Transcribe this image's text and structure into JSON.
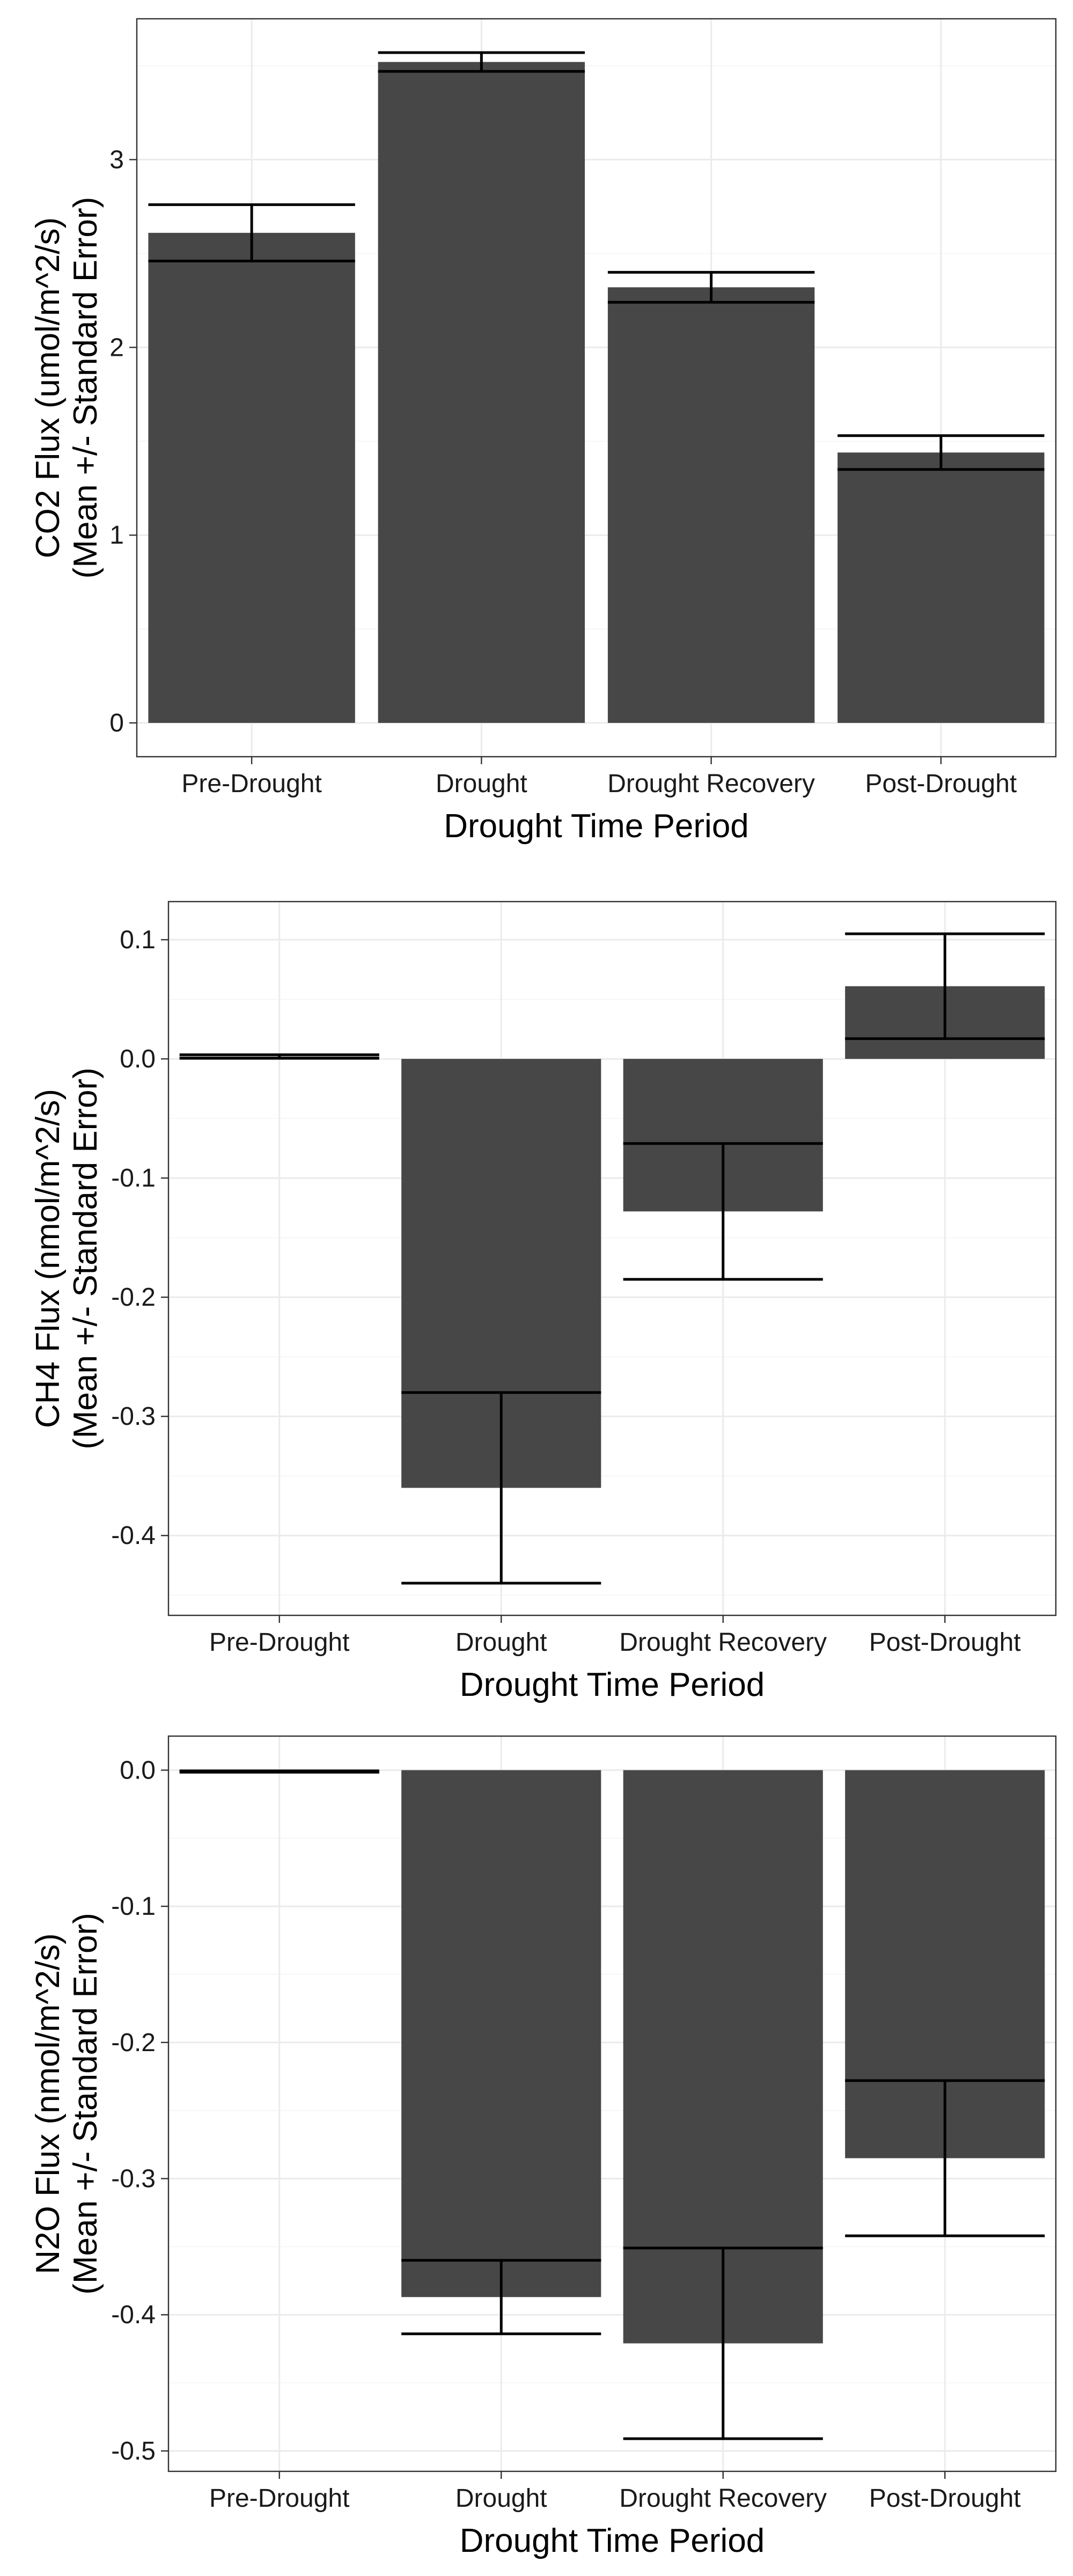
{
  "chart_data": [
    {
      "type": "bar",
      "title": "",
      "categories": [
        "Pre-Drought",
        "Drought",
        "Drought Recovery",
        "Post-Drought"
      ],
      "values": [
        2.61,
        3.52,
        2.32,
        1.44
      ],
      "errors": [
        0.15,
        0.05,
        0.08,
        0.09
      ],
      "xlabel": "Drought Time Period",
      "ylabel": [
        "CO2 Flux (umol/m^2/s)",
        "(Mean +/- Standard Error)"
      ],
      "ylim": [
        -0.18,
        3.75
      ],
      "yticks": [
        0,
        1,
        2,
        3
      ],
      "ytick_labels": [
        "0",
        "1",
        "2",
        "3"
      ],
      "grid": true,
      "legend": "none"
    },
    {
      "type": "bar",
      "title": "",
      "categories": [
        "Pre-Drought",
        "Drought",
        "Drought Recovery",
        "Post-Drought"
      ],
      "values": [
        0.002,
        -0.36,
        -0.128,
        0.061
      ],
      "errors": [
        0.0015,
        0.08,
        0.057,
        0.044
      ],
      "xlabel": "Drought Time Period",
      "ylabel": [
        "CH4 Flux (nmol/m^2/s)",
        "(Mean +/- Standard Error)"
      ],
      "ylim": [
        -0.467,
        0.132
      ],
      "yticks": [
        -0.4,
        -0.3,
        -0.2,
        -0.1,
        0.0,
        0.1
      ],
      "ytick_labels": [
        "-0.4",
        "-0.3",
        "-0.2",
        "-0.1",
        "0.0",
        "0.1"
      ],
      "grid": true,
      "legend": "none"
    },
    {
      "type": "bar",
      "title": "",
      "categories": [
        "Pre-Drought",
        "Drought",
        "Drought Recovery",
        "Post-Drought"
      ],
      "values": [
        -0.001,
        -0.387,
        -0.421,
        -0.285
      ],
      "errors": [
        0.0005,
        0.027,
        0.07,
        0.057
      ],
      "xlabel": "Drought Time Period",
      "ylabel": [
        "N2O Flux (nmol/m^2/s)",
        "(Mean +/- Standard Error)"
      ],
      "ylim": [
        -0.515,
        0.025
      ],
      "yticks": [
        -0.5,
        -0.4,
        -0.3,
        -0.2,
        -0.1,
        0.0
      ],
      "ytick_labels": [
        "-0.5",
        "-0.4",
        "-0.3",
        "-0.2",
        "-0.1",
        "0.0"
      ],
      "grid": true,
      "legend": "none"
    }
  ]
}
